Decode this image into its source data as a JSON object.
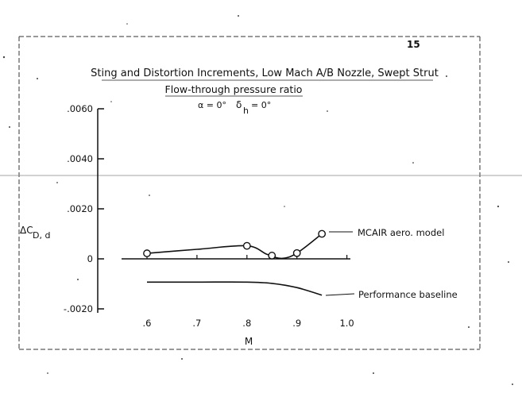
{
  "page_number": "15",
  "chart_data": {
    "type": "line",
    "title": "Sting and Distortion Increments, Low Mach A/B Nozzle, Swept Strut",
    "subtitle": "Flow-through pressure ratio",
    "condition_alpha": "α = 0°",
    "condition_delta": "δ",
    "condition_delta_sub": "h",
    "condition_delta_eq": "= 0°",
    "xlabel": "M",
    "ylabel_main": "ΔC",
    "ylabel_sub": "D, d",
    "xlim": [
      0.55,
      1.05
    ],
    "ylim": [
      -0.002,
      0.006
    ],
    "x_ticks": [
      {
        "value": 0.6,
        "label": ".6"
      },
      {
        "value": 0.7,
        "label": ".7"
      },
      {
        "value": 0.8,
        "label": ".8"
      },
      {
        "value": 0.9,
        "label": ".9"
      },
      {
        "value": 1.0,
        "label": "1.0"
      }
    ],
    "y_ticks": [
      {
        "value": 0.006,
        "label": ".0060"
      },
      {
        "value": 0.004,
        "label": ".0040"
      },
      {
        "value": 0.002,
        "label": ".0020"
      },
      {
        "value": 0.0,
        "label": "0"
      },
      {
        "value": -0.002,
        "label": "-.0020"
      }
    ],
    "series": [
      {
        "name": "MCAIR aero. model",
        "markers": true,
        "x": [
          0.6,
          0.8,
          0.85,
          0.9,
          0.95
        ],
        "y": [
          0.00022,
          0.00052,
          0.00013,
          0.00023,
          0.001
        ],
        "curve": [
          [
            0.6,
            0.00022
          ],
          [
            0.7,
            0.00038
          ],
          [
            0.8,
            0.00052
          ],
          [
            0.84,
            0.00018
          ],
          [
            0.87,
            2e-05
          ],
          [
            0.9,
            0.00023
          ],
          [
            0.95,
            0.001
          ]
        ]
      },
      {
        "name": "Performance baseline",
        "markers": false,
        "x": [
          0.6,
          0.7,
          0.8,
          0.85,
          0.9,
          0.95
        ],
        "y": [
          -0.00093,
          -0.00093,
          -0.00093,
          -0.00098,
          -0.00115,
          -0.00145
        ]
      }
    ]
  }
}
